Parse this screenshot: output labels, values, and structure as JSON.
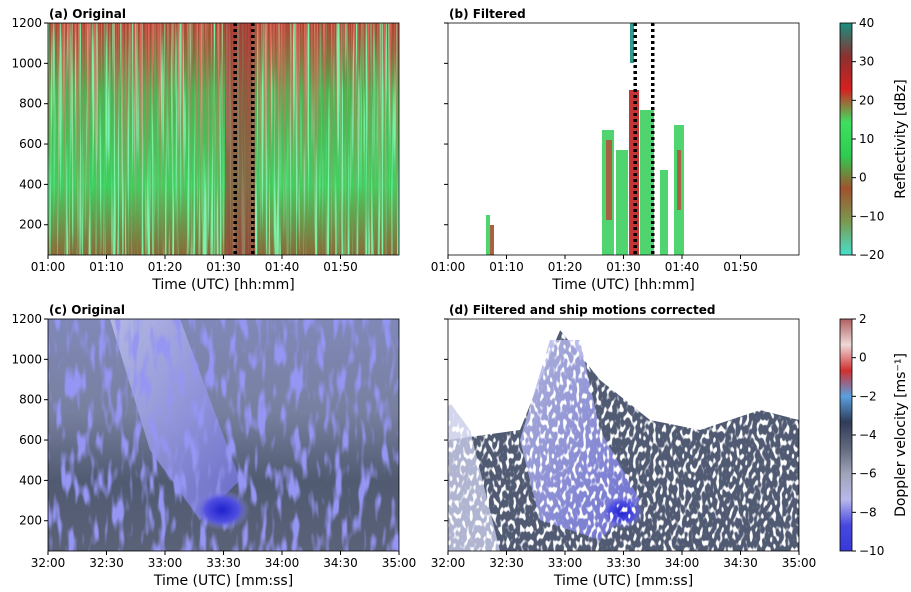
{
  "chart_data": [
    {
      "type": "heatmap",
      "title": "(a) Original",
      "xlabel": "Time (UTC) [hh:mm]",
      "xlim": [
        0,
        60
      ],
      "xticks": [
        {
          "value": 0,
          "label": "01:00"
        },
        {
          "value": 10,
          "label": "01:10"
        },
        {
          "value": 20,
          "label": "01:20"
        },
        {
          "value": 30,
          "label": "01:30"
        },
        {
          "value": 40,
          "label": "01:40"
        },
        {
          "value": 50,
          "label": "01:50"
        }
      ],
      "ylim": [
        50,
        1200
      ],
      "yticks": [
        200,
        400,
        600,
        800,
        1000,
        1200
      ],
      "vlines": [
        32,
        35
      ]
    },
    {
      "type": "heatmap",
      "title": "(b) Filtered",
      "xlabel": "Time (UTC) [hh:mm]",
      "xlim": [
        0,
        60
      ],
      "xticks": [
        {
          "value": 0,
          "label": "01:00"
        },
        {
          "value": 10,
          "label": "01:10"
        },
        {
          "value": 20,
          "label": "01:20"
        },
        {
          "value": 30,
          "label": "01:30"
        },
        {
          "value": 40,
          "label": "01:40"
        },
        {
          "value": 50,
          "label": "01:50"
        }
      ],
      "ylim": [
        50,
        1200
      ],
      "yticks_unlabeled": [
        200,
        400,
        600,
        800,
        1000,
        1200
      ],
      "vlines": [
        32,
        35
      ],
      "colorbar": {
        "label": "Reflectivity [dBz]",
        "lim": [
          -20,
          40
        ],
        "ticks": [
          {
            "value": -20,
            "label": "−20"
          },
          {
            "value": -10,
            "label": "−10"
          },
          0,
          10,
          20,
          30,
          40
        ],
        "colors": [
          "#48e0cc",
          "#7a9a50",
          "#a0522d",
          "#2ecc50",
          "#3ee060",
          "#d62020",
          "#8b3030",
          "#189080"
        ]
      }
    },
    {
      "type": "heatmap",
      "title": "(c) Original",
      "xlabel": "Time (UTC) [mm:ss]",
      "xlim": [
        1920,
        2100
      ],
      "xticks": [
        {
          "value": 1920,
          "label": "32:00"
        },
        {
          "value": 1950,
          "label": "32:30"
        },
        {
          "value": 1980,
          "label": "33:00"
        },
        {
          "value": 2010,
          "label": "33:30"
        },
        {
          "value": 2040,
          "label": "34:00"
        },
        {
          "value": 2070,
          "label": "34:30"
        },
        {
          "value": 2100,
          "label": "35:00"
        }
      ],
      "ylim": [
        50,
        1200
      ],
      "yticks": [
        200,
        400,
        600,
        800,
        1000,
        1200
      ]
    },
    {
      "type": "heatmap",
      "title": "(d) Filtered and ship motions corrected",
      "xlabel": "Time (UTC) [mm:ss]",
      "xlim": [
        1920,
        2100
      ],
      "xticks": [
        {
          "value": 1920,
          "label": "32:00"
        },
        {
          "value": 1950,
          "label": "32:30"
        },
        {
          "value": 1980,
          "label": "33:00"
        },
        {
          "value": 2010,
          "label": "33:30"
        },
        {
          "value": 2040,
          "label": "34:00"
        },
        {
          "value": 2070,
          "label": "34:30"
        },
        {
          "value": 2100,
          "label": "35:00"
        }
      ],
      "ylim": [
        50,
        1200
      ],
      "yticks_unlabeled": [
        200,
        400,
        600,
        800,
        1000,
        1200
      ],
      "colorbar": {
        "label": "Doppler velocity [ms⁻¹]",
        "lim": [
          -10,
          2
        ],
        "ticks": [
          {
            "value": -10,
            "label": "−10"
          },
          {
            "value": -8,
            "label": "−8"
          },
          {
            "value": -6,
            "label": "−6"
          },
          {
            "value": -4,
            "label": "−4"
          },
          {
            "value": -2,
            "label": "−2"
          },
          0,
          2
        ],
        "colors": [
          "#3838d8",
          "#4848e0",
          "#b8b8ec",
          "#a0a4b8",
          "#60687c",
          "#303c58",
          "#5aa0e0",
          "#d03030",
          "#f0d8d8",
          "#b06060"
        ]
      }
    }
  ]
}
